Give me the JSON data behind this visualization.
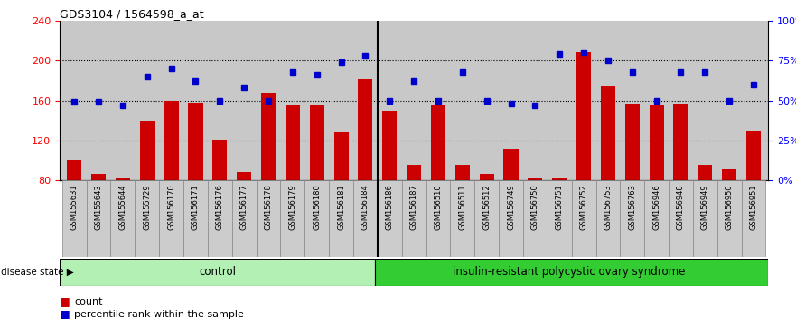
{
  "title": "GDS3104 / 1564598_a_at",
  "samples": [
    "GSM155631",
    "GSM155643",
    "GSM155644",
    "GSM155729",
    "GSM156170",
    "GSM156171",
    "GSM156176",
    "GSM156177",
    "GSM156178",
    "GSM156179",
    "GSM156180",
    "GSM156181",
    "GSM156184",
    "GSM156186",
    "GSM156187",
    "GSM156510",
    "GSM156511",
    "GSM156512",
    "GSM156749",
    "GSM156750",
    "GSM156751",
    "GSM156752",
    "GSM156753",
    "GSM156763",
    "GSM156946",
    "GSM156948",
    "GSM156949",
    "GSM156950",
    "GSM156951"
  ],
  "bar_values": [
    100,
    86,
    83,
    140,
    160,
    158,
    121,
    88,
    168,
    155,
    155,
    128,
    181,
    150,
    95,
    155,
    95,
    86,
    112,
    82,
    82,
    208,
    175,
    157,
    155,
    157,
    95,
    92,
    130
  ],
  "dot_values_pct": [
    49,
    49,
    47,
    65,
    70,
    62,
    50,
    58,
    50,
    68,
    66,
    74,
    78,
    50,
    62,
    50,
    68,
    50,
    48,
    47,
    79,
    80,
    75,
    68,
    50,
    68,
    68,
    50,
    60
  ],
  "control_count": 13,
  "ymin": 80,
  "ymax": 240,
  "yticks_left": [
    80,
    120,
    160,
    200,
    240
  ],
  "yticks_right": [
    0,
    25,
    50,
    75,
    100
  ],
  "bar_color": "#cc0000",
  "dot_color": "#0000cc",
  "control_bg": "#b3f0b3",
  "disease_bg": "#33cc33",
  "plot_bg": "#c8c8c8",
  "tick_bg": "#cccccc",
  "control_label": "control",
  "disease_label": "insulin-resistant polycystic ovary syndrome",
  "legend_count_label": "count",
  "legend_pct_label": "percentile rank within the sample",
  "disease_state_label": "disease state"
}
